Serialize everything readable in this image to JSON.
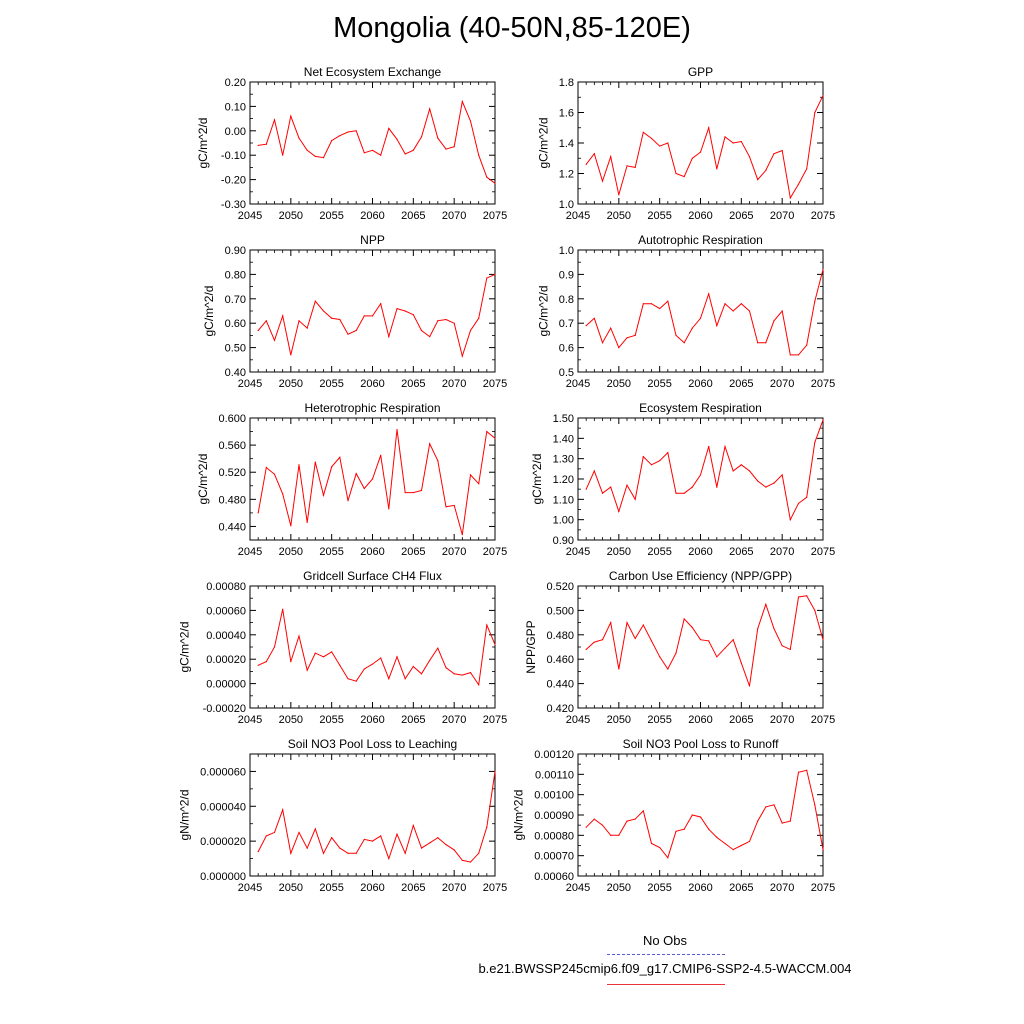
{
  "title": "Mongolia (40-50N,85-120E)",
  "colors": {
    "series": "#ff0000",
    "obs": "#5b5bd6",
    "axis": "#000000"
  },
  "legend": {
    "entries": [
      {
        "label": "No Obs",
        "style": "dashed",
        "color": "#5b5bd6"
      },
      {
        "label": "b.e21.BWSSP245cmip6.f09_g17.CMIP6-SSP2-4.5-WACCM.004",
        "style": "solid",
        "color": "#e8323c"
      }
    ]
  },
  "chart_data": [
    {
      "type": "line",
      "title": "Net Ecosystem Exchange",
      "ylabel": "gC/m^2/d",
      "xlim": [
        2045,
        2075
      ],
      "ylim": [
        -0.3,
        0.2
      ],
      "xticks": [
        2045,
        2050,
        2055,
        2060,
        2065,
        2070,
        2075
      ],
      "xtick_labels": [
        "2045",
        "2050",
        "2055",
        "2060",
        "2065",
        "2070",
        "2075"
      ],
      "yticks": [
        -0.3,
        -0.2,
        -0.1,
        0.0,
        0.1,
        0.2
      ],
      "ytick_labels": [
        "-0.30",
        "-0.20",
        "-0.10",
        "0.00",
        "0.10",
        "0.20"
      ],
      "x": [
        2046,
        2047,
        2048,
        2049,
        2050,
        2051,
        2052,
        2053,
        2054,
        2055,
        2056,
        2057,
        2058,
        2059,
        2060,
        2061,
        2062,
        2063,
        2064,
        2065,
        2066,
        2067,
        2068,
        2069,
        2070,
        2071,
        2072,
        2073,
        2074,
        2075
      ],
      "values": [
        -0.06,
        -0.055,
        0.045,
        -0.1,
        0.06,
        -0.03,
        -0.08,
        -0.105,
        -0.11,
        -0.04,
        -0.02,
        -0.005,
        0.0,
        -0.09,
        -0.08,
        -0.1,
        0.01,
        -0.035,
        -0.095,
        -0.08,
        -0.025,
        0.09,
        -0.03,
        -0.075,
        -0.065,
        0.12,
        0.04,
        -0.1,
        -0.19,
        -0.215
      ]
    },
    {
      "type": "line",
      "title": "GPP",
      "ylabel": "gC/m^2/d",
      "xlim": [
        2045,
        2075
      ],
      "ylim": [
        1.0,
        1.8
      ],
      "xticks": [
        2045,
        2050,
        2055,
        2060,
        2065,
        2070,
        2075
      ],
      "xtick_labels": [
        "2045",
        "2050",
        "2055",
        "2060",
        "2065",
        "2070",
        "2075"
      ],
      "yticks": [
        1.0,
        1.2,
        1.4,
        1.6,
        1.8
      ],
      "ytick_labels": [
        "1.0",
        "1.2",
        "1.4",
        "1.6",
        "1.8"
      ],
      "x": [
        2046,
        2047,
        2048,
        2049,
        2050,
        2051,
        2052,
        2053,
        2054,
        2055,
        2056,
        2057,
        2058,
        2059,
        2060,
        2061,
        2062,
        2063,
        2064,
        2065,
        2066,
        2067,
        2068,
        2069,
        2070,
        2071,
        2072,
        2073,
        2074,
        2075
      ],
      "values": [
        1.26,
        1.33,
        1.15,
        1.31,
        1.06,
        1.25,
        1.24,
        1.47,
        1.43,
        1.38,
        1.4,
        1.2,
        1.18,
        1.3,
        1.34,
        1.5,
        1.23,
        1.44,
        1.4,
        1.41,
        1.31,
        1.16,
        1.22,
        1.33,
        1.35,
        1.04,
        1.13,
        1.23,
        1.6,
        1.71
      ]
    },
    {
      "type": "line",
      "title": "NPP",
      "ylabel": "gC/m^2/d",
      "xlim": [
        2045,
        2075
      ],
      "ylim": [
        0.4,
        0.9
      ],
      "xticks": [
        2045,
        2050,
        2055,
        2060,
        2065,
        2070,
        2075
      ],
      "xtick_labels": [
        "2045",
        "2050",
        "2055",
        "2060",
        "2065",
        "2070",
        "2075"
      ],
      "yticks": [
        0.4,
        0.5,
        0.6,
        0.7,
        0.8,
        0.9
      ],
      "ytick_labels": [
        "0.40",
        "0.50",
        "0.60",
        "0.70",
        "0.80",
        "0.90"
      ],
      "x": [
        2046,
        2047,
        2048,
        2049,
        2050,
        2051,
        2052,
        2053,
        2054,
        2055,
        2056,
        2057,
        2058,
        2059,
        2060,
        2061,
        2062,
        2063,
        2064,
        2065,
        2066,
        2067,
        2068,
        2069,
        2070,
        2071,
        2072,
        2073,
        2074,
        2075
      ],
      "values": [
        0.57,
        0.61,
        0.53,
        0.63,
        0.47,
        0.61,
        0.58,
        0.69,
        0.65,
        0.62,
        0.615,
        0.555,
        0.57,
        0.63,
        0.63,
        0.68,
        0.545,
        0.66,
        0.65,
        0.635,
        0.57,
        0.545,
        0.61,
        0.615,
        0.6,
        0.465,
        0.57,
        0.62,
        0.785,
        0.8
      ]
    },
    {
      "type": "line",
      "title": "Autotrophic Respiration",
      "ylabel": "gC/m^2/d",
      "xlim": [
        2045,
        2075
      ],
      "ylim": [
        0.5,
        1.0
      ],
      "xticks": [
        2045,
        2050,
        2055,
        2060,
        2065,
        2070,
        2075
      ],
      "xtick_labels": [
        "2045",
        "2050",
        "2055",
        "2060",
        "2065",
        "2070",
        "2075"
      ],
      "yticks": [
        0.5,
        0.6,
        0.7,
        0.8,
        0.9,
        1.0
      ],
      "ytick_labels": [
        "0.5",
        "0.6",
        "0.7",
        "0.8",
        "0.9",
        "1.0"
      ],
      "x": [
        2046,
        2047,
        2048,
        2049,
        2050,
        2051,
        2052,
        2053,
        2054,
        2055,
        2056,
        2057,
        2058,
        2059,
        2060,
        2061,
        2062,
        2063,
        2064,
        2065,
        2066,
        2067,
        2068,
        2069,
        2070,
        2071,
        2072,
        2073,
        2074,
        2075
      ],
      "values": [
        0.69,
        0.72,
        0.62,
        0.68,
        0.6,
        0.64,
        0.65,
        0.78,
        0.78,
        0.76,
        0.79,
        0.65,
        0.62,
        0.68,
        0.72,
        0.82,
        0.69,
        0.78,
        0.75,
        0.78,
        0.75,
        0.62,
        0.62,
        0.71,
        0.75,
        0.57,
        0.57,
        0.61,
        0.79,
        0.92
      ]
    },
    {
      "type": "line",
      "title": "Heterotrophic Respiration",
      "ylabel": "gC/m^2/d",
      "xlim": [
        2045,
        2075
      ],
      "ylim": [
        0.42,
        0.6
      ],
      "xticks": [
        2045,
        2050,
        2055,
        2060,
        2065,
        2070,
        2075
      ],
      "xtick_labels": [
        "2045",
        "2050",
        "2055",
        "2060",
        "2065",
        "2070",
        "2075"
      ],
      "yticks": [
        0.44,
        0.48,
        0.52,
        0.56,
        0.6
      ],
      "ytick_labels": [
        "0.440",
        "0.480",
        "0.520",
        "0.560",
        "0.600"
      ],
      "x": [
        2046,
        2047,
        2048,
        2049,
        2050,
        2051,
        2052,
        2053,
        2054,
        2055,
        2056,
        2057,
        2058,
        2059,
        2060,
        2061,
        2062,
        2063,
        2064,
        2065,
        2066,
        2067,
        2068,
        2069,
        2070,
        2071,
        2072,
        2073,
        2074,
        2075
      ],
      "values": [
        0.46,
        0.527,
        0.517,
        0.488,
        0.441,
        0.531,
        0.446,
        0.535,
        0.486,
        0.528,
        0.542,
        0.478,
        0.518,
        0.496,
        0.51,
        0.545,
        0.466,
        0.583,
        0.49,
        0.49,
        0.493,
        0.562,
        0.537,
        0.469,
        0.471,
        0.428,
        0.516,
        0.503,
        0.58,
        0.57
      ]
    },
    {
      "type": "line",
      "title": "Ecosystem Respiration",
      "ylabel": "gC/m^2/d",
      "xlim": [
        2045,
        2075
      ],
      "ylim": [
        0.9,
        1.5
      ],
      "xticks": [
        2045,
        2050,
        2055,
        2060,
        2065,
        2070,
        2075
      ],
      "xtick_labels": [
        "2045",
        "2050",
        "2055",
        "2060",
        "2065",
        "2070",
        "2075"
      ],
      "yticks": [
        0.9,
        1.0,
        1.1,
        1.2,
        1.3,
        1.4,
        1.5
      ],
      "ytick_labels": [
        "0.90",
        "1.00",
        "1.10",
        "1.20",
        "1.30",
        "1.40",
        "1.50"
      ],
      "x": [
        2046,
        2047,
        2048,
        2049,
        2050,
        2051,
        2052,
        2053,
        2054,
        2055,
        2056,
        2057,
        2058,
        2059,
        2060,
        2061,
        2062,
        2063,
        2064,
        2065,
        2066,
        2067,
        2068,
        2069,
        2070,
        2071,
        2072,
        2073,
        2074,
        2075
      ],
      "values": [
        1.15,
        1.24,
        1.13,
        1.16,
        1.04,
        1.17,
        1.1,
        1.31,
        1.27,
        1.29,
        1.33,
        1.13,
        1.13,
        1.16,
        1.22,
        1.36,
        1.16,
        1.36,
        1.24,
        1.27,
        1.24,
        1.19,
        1.16,
        1.18,
        1.22,
        1.0,
        1.08,
        1.11,
        1.38,
        1.49
      ]
    },
    {
      "type": "line",
      "title": "Gridcell Surface CH4 Flux",
      "ylabel": "gC/m^2/d",
      "xlim": [
        2045,
        2075
      ],
      "ylim": [
        -0.0002,
        0.0008
      ],
      "xticks": [
        2045,
        2050,
        2055,
        2060,
        2065,
        2070,
        2075
      ],
      "xtick_labels": [
        "2045",
        "2050",
        "2055",
        "2060",
        "2065",
        "2070",
        "2075"
      ],
      "yticks": [
        -0.0002,
        0.0,
        0.0002,
        0.0004,
        0.0006,
        0.0008
      ],
      "ytick_labels": [
        "-0.00020",
        "0.00000",
        "0.00020",
        "0.00040",
        "0.00060",
        "0.00080"
      ],
      "x": [
        2046,
        2047,
        2048,
        2049,
        2050,
        2051,
        2052,
        2053,
        2054,
        2055,
        2056,
        2057,
        2058,
        2059,
        2060,
        2061,
        2062,
        2063,
        2064,
        2065,
        2066,
        2067,
        2068,
        2069,
        2070,
        2071,
        2072,
        2073,
        2074,
        2075
      ],
      "values": [
        0.00015,
        0.00018,
        0.0003,
        0.00061,
        0.00018,
        0.00039,
        0.00011,
        0.00025,
        0.00022,
        0.00026,
        0.00015,
        4e-05,
        2e-05,
        0.00012,
        0.00016,
        0.00021,
        4e-05,
        0.00022,
        4e-05,
        0.00014,
        8e-05,
        0.00019,
        0.00029,
        0.00013,
        8e-05,
        7e-05,
        9e-05,
        -1e-05,
        0.00048,
        0.00032
      ]
    },
    {
      "type": "line",
      "title": "Carbon Use Efficiency (NPP/GPP)",
      "ylabel": "NPP/GPP",
      "xlim": [
        2045,
        2075
      ],
      "ylim": [
        0.42,
        0.52
      ],
      "xticks": [
        2045,
        2050,
        2055,
        2060,
        2065,
        2070,
        2075
      ],
      "xtick_labels": [
        "2045",
        "2050",
        "2055",
        "2060",
        "2065",
        "2070",
        "2075"
      ],
      "yticks": [
        0.42,
        0.44,
        0.46,
        0.48,
        0.5,
        0.52
      ],
      "ytick_labels": [
        "0.420",
        "0.440",
        "0.460",
        "0.480",
        "0.500",
        "0.520"
      ],
      "x": [
        2046,
        2047,
        2048,
        2049,
        2050,
        2051,
        2052,
        2053,
        2054,
        2055,
        2056,
        2057,
        2058,
        2059,
        2060,
        2061,
        2062,
        2063,
        2064,
        2065,
        2066,
        2067,
        2068,
        2069,
        2070,
        2071,
        2072,
        2073,
        2074,
        2075
      ],
      "values": [
        0.468,
        0.474,
        0.476,
        0.49,
        0.452,
        0.49,
        0.477,
        0.488,
        0.475,
        0.462,
        0.452,
        0.465,
        0.493,
        0.486,
        0.476,
        0.475,
        0.462,
        0.469,
        0.476,
        0.457,
        0.438,
        0.485,
        0.505,
        0.485,
        0.471,
        0.468,
        0.511,
        0.512,
        0.5,
        0.476
      ]
    },
    {
      "type": "line",
      "title": "Soil NO3 Pool Loss to Leaching",
      "ylabel": "gN/m^2/d",
      "xlim": [
        2045,
        2075
      ],
      "ylim": [
        0.0,
        7e-05
      ],
      "xticks": [
        2045,
        2050,
        2055,
        2060,
        2065,
        2070,
        2075
      ],
      "xtick_labels": [
        "2045",
        "2050",
        "2055",
        "2060",
        "2065",
        "2070",
        "2075"
      ],
      "yticks": [
        0.0,
        2e-05,
        4e-05,
        6e-05
      ],
      "ytick_labels": [
        "0.000000",
        "0.000020",
        "0.000040",
        "0.000060"
      ],
      "x": [
        2046,
        2047,
        2048,
        2049,
        2050,
        2051,
        2052,
        2053,
        2054,
        2055,
        2056,
        2057,
        2058,
        2059,
        2060,
        2061,
        2062,
        2063,
        2064,
        2065,
        2066,
        2067,
        2068,
        2069,
        2070,
        2071,
        2072,
        2073,
        2074,
        2075
      ],
      "values": [
        1.4e-05,
        2.3e-05,
        2.5e-05,
        3.8e-05,
        1.3e-05,
        2.5e-05,
        1.6e-05,
        2.7e-05,
        1.3e-05,
        2.2e-05,
        1.6e-05,
        1.3e-05,
        1.3e-05,
        2.1e-05,
        2e-05,
        2.3e-05,
        1e-05,
        2.4e-05,
        1.3e-05,
        2.9e-05,
        1.6e-05,
        1.9e-05,
        2.2e-05,
        1.8e-05,
        1.5e-05,
        9e-06,
        8e-06,
        1.3e-05,
        2.8e-05,
        6e-05
      ]
    },
    {
      "type": "line",
      "title": "Soil NO3 Pool Loss to Runoff",
      "ylabel": "gN/m^2/d",
      "xlim": [
        2045,
        2075
      ],
      "ylim": [
        0.0006,
        0.0012
      ],
      "xticks": [
        2045,
        2050,
        2055,
        2060,
        2065,
        2070,
        2075
      ],
      "xtick_labels": [
        "2045",
        "2050",
        "2055",
        "2060",
        "2065",
        "2070",
        "2075"
      ],
      "yticks": [
        0.0006,
        0.0007,
        0.0008,
        0.0009,
        0.001,
        0.0011,
        0.0012
      ],
      "ytick_labels": [
        "0.00060",
        "0.00070",
        "0.00080",
        "0.00090",
        "0.00100",
        "0.00110",
        "0.00120"
      ],
      "x": [
        2046,
        2047,
        2048,
        2049,
        2050,
        2051,
        2052,
        2053,
        2054,
        2055,
        2056,
        2057,
        2058,
        2059,
        2060,
        2061,
        2062,
        2063,
        2064,
        2065,
        2066,
        2067,
        2068,
        2069,
        2070,
        2071,
        2072,
        2073,
        2074,
        2075
      ],
      "values": [
        0.00084,
        0.00088,
        0.00085,
        0.0008,
        0.0008,
        0.00087,
        0.00088,
        0.00092,
        0.00076,
        0.00074,
        0.00069,
        0.00082,
        0.00083,
        0.0009,
        0.00089,
        0.00083,
        0.00079,
        0.00076,
        0.00073,
        0.00075,
        0.00077,
        0.00087,
        0.00094,
        0.00095,
        0.00086,
        0.00087,
        0.00111,
        0.00112,
        0.00095,
        0.00073
      ]
    }
  ]
}
